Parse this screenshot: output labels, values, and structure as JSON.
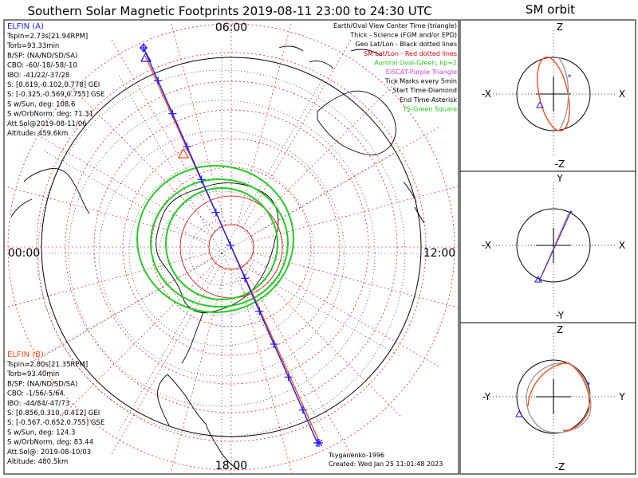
{
  "title": "Southern Solar Magnetic Footprints 2019-08-11 23:00 to 24:30 UTC",
  "orbit_title": "SM orbit",
  "mlt_labels": {
    "top": "06:00",
    "left": "00:00",
    "right": "12:00",
    "bottom": "18:00"
  },
  "sat_a": {
    "name": "ELFIN (A)",
    "color": "#1a1aff",
    "lines": [
      "Tspin=2.73s[21.94RPM]",
      "Torb=93.33min",
      "B/SP: (NA/ND/SD/SA)",
      "CBO: -60/-18/-58/-10",
      "IBO: -41/22/-37/28",
      "S: [0.619,-0.102,0.778] GEI",
      "S: [-0.325,-0.569,0.755] GSE",
      "S w/Sun, deg: 108.6",
      "S w/OrbNorm, deg: 71.31",
      "Att.Sol@2019-08-11/06",
      "Altitude: 459.6km"
    ]
  },
  "sat_b": {
    "name": "ELFIN (B)",
    "color": "#ff4a1a",
    "lines": [
      "Tspin=2.80s[21.35RPM]",
      "Torb=93.40min",
      "B/SP: (NA/ND/SD/SA)",
      "CBO: -1/56/-5/64",
      "IBO: -44/84/-47/73",
      "S: [0.856,0.310,-0.412] GEI",
      "S: [-0.567,-0.652,0.755] GSE",
      "S w/Sun, deg: 124.3",
      "S w/OrbNorm, deg: 83.44",
      "Att.Sol@: 2019-08-10/03",
      "Altitude: 480.5km"
    ]
  },
  "legend": [
    {
      "text": "Earth/Oval View Center Time (triangle)",
      "color": "#000000"
    },
    {
      "text": "Thick - Science (FGM and/or EPD)",
      "color": "#000000"
    },
    {
      "text": "Geo Lat/Lon - Black dotted lines",
      "color": "#000000"
    },
    {
      "text": "SM Lat/Lon - Red dotted lines",
      "color": "#e00000"
    },
    {
      "text": "Auroral Oval-Green, kp=2",
      "color": "#22cc22"
    },
    {
      "text": "EISCAT-Purple Triangle",
      "color": "#cc44cc"
    },
    {
      "text": "Tick Marks every 5min",
      "color": "#000000"
    },
    {
      "text": "Start Time-Diamond",
      "color": "#000000"
    },
    {
      "text": "End Time-Asterisk",
      "color": "#000000"
    },
    {
      "text": "TS-Green Square",
      "color": "#22cc22"
    }
  ],
  "footer": {
    "model": "Tsyganenko-1996",
    "created": "Created: Wed Jan 25 11:01:48 2023"
  },
  "panels": [
    {
      "top": "Z",
      "bottom": "-Z",
      "left": "-X",
      "right": "X"
    },
    {
      "top": "Y",
      "bottom": "-Y",
      "left": "-X",
      "right": "X"
    },
    {
      "top": "Z",
      "bottom": "-Z",
      "left": "-Y",
      "right": "Y"
    }
  ],
  "chart_data": {
    "type": "polar-map",
    "title": "Southern Solar Magnetic Footprints",
    "time_range": "2019-08-11 23:00 to 24:30 UTC",
    "projection": "SM polar, south",
    "mlt_axes": [
      "00:00",
      "06:00",
      "12:00",
      "18:00"
    ],
    "sm_latitude_circles_deg": [
      -90,
      -80,
      -70,
      -60,
      -50,
      -40,
      -30
    ],
    "series": [
      {
        "name": "ELFIN (A) footprint",
        "color": "#1a1aff",
        "tick_interval_min": 5
      },
      {
        "name": "ELFIN (B) footprint",
        "color": "#ff4a1a",
        "tick_interval_min": 5
      }
    ],
    "auroral_oval": {
      "kp": 2,
      "color": "#22cc22"
    }
  }
}
